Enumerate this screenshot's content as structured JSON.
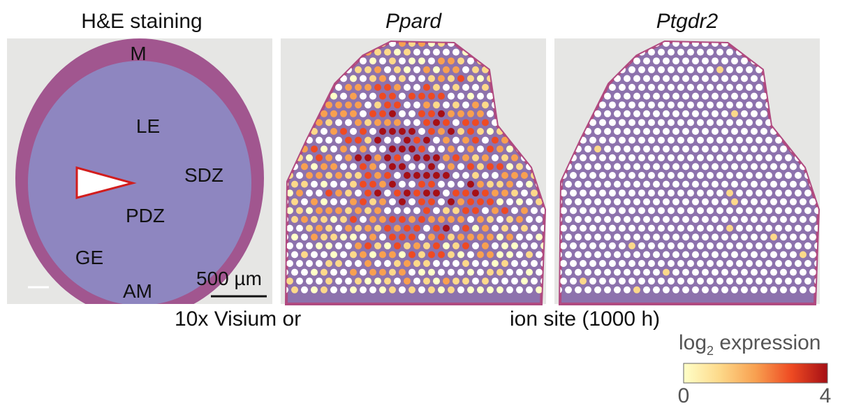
{
  "panels": [
    {
      "title": "H&E staining"
    },
    {
      "title": "Ppard"
    },
    {
      "title": "Ptgdr2"
    }
  ],
  "annotations": {
    "labels": [
      "M",
      "LE",
      "SDZ",
      "PDZ",
      "GE",
      "AM"
    ],
    "scale_bar": "500 µm"
  },
  "caption": [
    "10x Visium or",
    "ion site (1000 h)"
  ],
  "colorbar": {
    "title": "log",
    "subscript": "2",
    "title_rest": " expression",
    "min": 0,
    "max": 4,
    "colors": [
      "#ffffc8",
      "#fdd98a",
      "#f8a050",
      "#ee4a22",
      "#a50f15"
    ]
  }
}
